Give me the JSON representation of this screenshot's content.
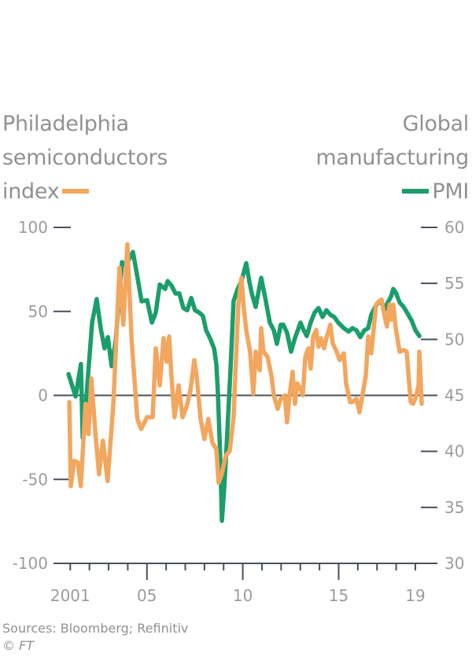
{
  "chart_data": {
    "type": "line",
    "title": "",
    "left_title": [
      "Philadelphia",
      "semiconductors",
      "index"
    ],
    "right_title": [
      "Global",
      "manufacturing",
      "PMI"
    ],
    "xlabel": "",
    "ylabel_left": "Philadelphia semiconductors index",
    "ylabel_right": "Global manufacturing PMI",
    "xlim": [
      2000.1,
      2020.1
    ],
    "ylim_left": [
      -100,
      100
    ],
    "ylim_right": [
      30,
      60
    ],
    "x_ticks": [
      {
        "value": 2001,
        "label": "2001"
      },
      {
        "value": 2005,
        "label": "05"
      },
      {
        "value": 2010,
        "label": "10"
      },
      {
        "value": 2015,
        "label": "15"
      },
      {
        "value": 2019,
        "label": "19"
      }
    ],
    "minor_x_ticks": [
      2001,
      2002,
      2003,
      2004,
      2006,
      2007,
      2008,
      2009,
      2011,
      2012,
      2013,
      2014,
      2016,
      2017,
      2018,
      2019
    ],
    "major_x_ticks": [
      2005,
      2010,
      2015
    ],
    "y_ticks_left": [
      {
        "value": 100,
        "label": "100"
      },
      {
        "value": 50,
        "label": "50"
      },
      {
        "value": 0,
        "label": "0"
      },
      {
        "value": -50,
        "label": "-50"
      },
      {
        "value": -100,
        "label": "-100"
      }
    ],
    "y_ticks_right": [
      {
        "value": 60,
        "label": "60"
      },
      {
        "value": 55,
        "label": "55"
      },
      {
        "value": 50,
        "label": "50"
      },
      {
        "value": 45,
        "label": "45"
      },
      {
        "value": 40,
        "label": "40"
      },
      {
        "value": 35,
        "label": "35"
      },
      {
        "value": 30,
        "label": "30"
      }
    ],
    "zero_line_left": 0,
    "grid": false,
    "legend": "inline-titles",
    "series": [
      {
        "name": "Philadelphia semiconductors index",
        "axis": "left",
        "color": "#f2a65e",
        "points": [
          [
            2000.95,
            -4
          ],
          [
            2001.03,
            -54
          ],
          [
            2001.2,
            -39
          ],
          [
            2001.4,
            -40
          ],
          [
            2001.55,
            -54
          ],
          [
            2001.8,
            -5
          ],
          [
            2001.95,
            -23
          ],
          [
            2002.1,
            10
          ],
          [
            2002.3,
            -21
          ],
          [
            2002.5,
            -47
          ],
          [
            2002.7,
            -27
          ],
          [
            2002.95,
            -51
          ],
          [
            2003.25,
            -5
          ],
          [
            2003.57,
            76
          ],
          [
            2003.77,
            42
          ],
          [
            2003.98,
            90
          ],
          [
            2004.2,
            33
          ],
          [
            2004.5,
            -14
          ],
          [
            2004.7,
            -20
          ],
          [
            2005.0,
            -13
          ],
          [
            2005.3,
            -13
          ],
          [
            2005.46,
            28
          ],
          [
            2005.67,
            6
          ],
          [
            2005.87,
            34
          ],
          [
            2006.03,
            20
          ],
          [
            2006.16,
            35
          ],
          [
            2006.28,
            11
          ],
          [
            2006.44,
            -13
          ],
          [
            2006.65,
            6
          ],
          [
            2006.86,
            -13
          ],
          [
            2007.06,
            -7
          ],
          [
            2007.27,
            3
          ],
          [
            2007.47,
            21
          ],
          [
            2007.6,
            11
          ],
          [
            2007.8,
            -14
          ],
          [
            2008.0,
            -26
          ],
          [
            2008.2,
            -14
          ],
          [
            2008.41,
            -28
          ],
          [
            2008.62,
            -32
          ],
          [
            2008.74,
            -52
          ],
          [
            2008.9,
            -47
          ],
          [
            2009.11,
            -36
          ],
          [
            2009.32,
            -33
          ],
          [
            2009.52,
            -13
          ],
          [
            2009.65,
            23
          ],
          [
            2009.77,
            54
          ],
          [
            2009.93,
            70
          ],
          [
            2010.06,
            51
          ],
          [
            2010.18,
            39
          ],
          [
            2010.38,
            26
          ],
          [
            2010.55,
            1
          ],
          [
            2010.67,
            26
          ],
          [
            2010.88,
            15
          ],
          [
            2010.96,
            40
          ],
          [
            2011.08,
            26
          ],
          [
            2011.29,
            23
          ],
          [
            2011.49,
            12
          ],
          [
            2011.62,
            0
          ],
          [
            2011.82,
            -8
          ],
          [
            2011.98,
            -2
          ],
          [
            2012.19,
            0
          ],
          [
            2012.31,
            -16
          ],
          [
            2012.44,
            0
          ],
          [
            2012.6,
            14
          ],
          [
            2012.72,
            -5
          ],
          [
            2012.85,
            7
          ],
          [
            2013.01,
            4
          ],
          [
            2013.13,
            0
          ],
          [
            2013.26,
            23
          ],
          [
            2013.42,
            28
          ],
          [
            2013.54,
            16
          ],
          [
            2013.67,
            35
          ],
          [
            2013.83,
            39
          ],
          [
            2013.95,
            29
          ],
          [
            2014.08,
            34
          ],
          [
            2014.24,
            28
          ],
          [
            2014.36,
            34
          ],
          [
            2014.57,
            42
          ],
          [
            2014.69,
            31
          ],
          [
            2014.9,
            26
          ],
          [
            2015.06,
            21
          ],
          [
            2015.27,
            25
          ],
          [
            2015.39,
            7
          ],
          [
            2015.6,
            -4
          ],
          [
            2015.72,
            -4
          ],
          [
            2015.93,
            -2
          ],
          [
            2016.09,
            -10
          ],
          [
            2016.21,
            -2
          ],
          [
            2016.42,
            12
          ],
          [
            2016.54,
            35
          ],
          [
            2016.7,
            25
          ],
          [
            2016.83,
            40
          ],
          [
            2016.95,
            54
          ],
          [
            2017.11,
            56
          ],
          [
            2017.24,
            57
          ],
          [
            2017.36,
            49
          ],
          [
            2017.52,
            41
          ],
          [
            2017.65,
            54
          ],
          [
            2017.73,
            45
          ],
          [
            2017.85,
            54
          ],
          [
            2017.98,
            40
          ],
          [
            2018.18,
            26
          ],
          [
            2018.39,
            27
          ],
          [
            2018.55,
            26
          ],
          [
            2018.76,
            -4
          ],
          [
            2018.88,
            -5
          ],
          [
            2019.0,
            -2
          ],
          [
            2019.17,
            6
          ],
          [
            2019.21,
            26
          ],
          [
            2019.33,
            -5
          ]
        ]
      },
      {
        "name": "Global manufacturing PMI",
        "axis": "right",
        "color": "#1a9e6b",
        "points": [
          [
            2000.91,
            46.9
          ],
          [
            2001.28,
            44.9
          ],
          [
            2001.56,
            47.8
          ],
          [
            2001.65,
            41.2
          ],
          [
            2001.85,
            45.0
          ],
          [
            2002.14,
            51.5
          ],
          [
            2002.38,
            53.6
          ],
          [
            2002.59,
            51.0
          ],
          [
            2002.79,
            49.2
          ],
          [
            2002.96,
            50.2
          ],
          [
            2003.16,
            47.6
          ],
          [
            2003.37,
            49.9
          ],
          [
            2003.7,
            56.9
          ],
          [
            2003.9,
            56.6
          ],
          [
            2004.27,
            57.8
          ],
          [
            2004.44,
            56.2
          ],
          [
            2004.72,
            53.4
          ],
          [
            2005.01,
            53.5
          ],
          [
            2005.26,
            51.5
          ],
          [
            2005.46,
            52.4
          ],
          [
            2005.67,
            54.9
          ],
          [
            2005.95,
            54.5
          ],
          [
            2006.08,
            55.2
          ],
          [
            2006.28,
            54.8
          ],
          [
            2006.49,
            54.1
          ],
          [
            2006.69,
            54.1
          ],
          [
            2006.9,
            52.8
          ],
          [
            2007.1,
            52.6
          ],
          [
            2007.31,
            53.7
          ],
          [
            2007.51,
            52.6
          ],
          [
            2007.72,
            52.4
          ],
          [
            2007.92,
            52.1
          ],
          [
            2008.09,
            50.8
          ],
          [
            2008.29,
            50.1
          ],
          [
            2008.5,
            49.2
          ],
          [
            2008.62,
            47.8
          ],
          [
            2008.7,
            45.4
          ],
          [
            2008.82,
            39.6
          ],
          [
            2008.91,
            33.8
          ],
          [
            2009.03,
            36.7
          ],
          [
            2009.15,
            40.3
          ],
          [
            2009.36,
            47.3
          ],
          [
            2009.52,
            53.4
          ],
          [
            2009.73,
            54.5
          ],
          [
            2009.93,
            55.2
          ],
          [
            2010.18,
            56.8
          ],
          [
            2010.34,
            55.2
          ],
          [
            2010.47,
            54.1
          ],
          [
            2010.67,
            52.9
          ],
          [
            2010.96,
            55.5
          ],
          [
            2011.16,
            53.8
          ],
          [
            2011.41,
            51.5
          ],
          [
            2011.62,
            50.8
          ],
          [
            2011.78,
            49.6
          ],
          [
            2011.98,
            51.3
          ],
          [
            2012.11,
            51.3
          ],
          [
            2012.31,
            50.6
          ],
          [
            2012.52,
            48.9
          ],
          [
            2012.72,
            50.1
          ],
          [
            2013.01,
            51.5
          ],
          [
            2013.13,
            51.0
          ],
          [
            2013.34,
            50.3
          ],
          [
            2013.54,
            51.5
          ],
          [
            2013.75,
            52.4
          ],
          [
            2013.95,
            52.8
          ],
          [
            2014.16,
            52.0
          ],
          [
            2014.36,
            52.6
          ],
          [
            2014.57,
            52.2
          ],
          [
            2014.77,
            52.0
          ],
          [
            2014.98,
            51.5
          ],
          [
            2015.27,
            51.0
          ],
          [
            2015.52,
            50.7
          ],
          [
            2015.72,
            51.0
          ],
          [
            2015.93,
            50.8
          ],
          [
            2016.13,
            50.2
          ],
          [
            2016.34,
            50.8
          ],
          [
            2016.54,
            51.0
          ],
          [
            2016.7,
            52.2
          ],
          [
            2016.91,
            52.9
          ],
          [
            2017.11,
            53.4
          ],
          [
            2017.32,
            53.1
          ],
          [
            2017.44,
            52.7
          ],
          [
            2017.56,
            53.3
          ],
          [
            2017.73,
            53.8
          ],
          [
            2017.85,
            54.5
          ],
          [
            2017.98,
            54.2
          ],
          [
            2018.18,
            53.3
          ],
          [
            2018.39,
            52.9
          ],
          [
            2018.6,
            52.3
          ],
          [
            2018.8,
            51.7
          ],
          [
            2019.01,
            50.8
          ],
          [
            2019.21,
            50.3
          ]
        ]
      }
    ]
  },
  "source": {
    "text": "Sources: Bloomberg; Refinitiv",
    "copyright": "© FT"
  }
}
